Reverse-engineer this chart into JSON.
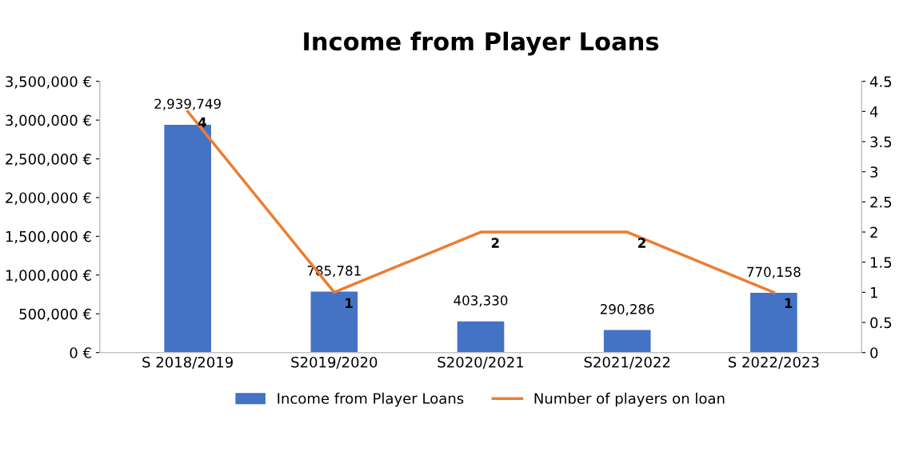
{
  "chart_data": {
    "type": "bar",
    "title": "Income from Player Loans",
    "categories": [
      "S 2018/2019",
      "S2019/2020",
      "S2020/2021",
      "S2021/2022",
      "S 2022/2023"
    ],
    "series": [
      {
        "name": "Income from Player Loans",
        "color": "#4472c4",
        "values": [
          2939749,
          785781,
          403330,
          290286,
          770158
        ],
        "value_labels": [
          "2,939,749",
          "785,781",
          "403,330",
          "290,286",
          "770,158"
        ]
      },
      {
        "name": "Number of players on loan",
        "type": "line",
        "axis": "y2",
        "color": "#ed7d31",
        "values": [
          4,
          1,
          2,
          2,
          1
        ],
        "value_labels": [
          "4",
          "1",
          "2",
          "2",
          "1"
        ]
      }
    ],
    "ylim": [
      0,
      3500000
    ],
    "yticks": [
      {
        "value": 0,
        "label": "0 €"
      },
      {
        "value": 500000,
        "label": "500,000 €"
      },
      {
        "value": 1000000,
        "label": "1,000,000 €"
      },
      {
        "value": 1500000,
        "label": "1,500,000 €"
      },
      {
        "value": 2000000,
        "label": "2,000,000 €"
      },
      {
        "value": 2500000,
        "label": "2,500,000 €"
      },
      {
        "value": 3000000,
        "label": "3,000,000 €"
      },
      {
        "value": 3500000,
        "label": "3,500,000 €"
      }
    ],
    "y2lim": [
      0,
      4.5
    ],
    "y2ticks": [
      0,
      0.5,
      1,
      1.5,
      2,
      2.5,
      3,
      3.5,
      4,
      4.5
    ],
    "legend": "bottom",
    "grid": false,
    "marker": "none",
    "line_style": "solid"
  }
}
